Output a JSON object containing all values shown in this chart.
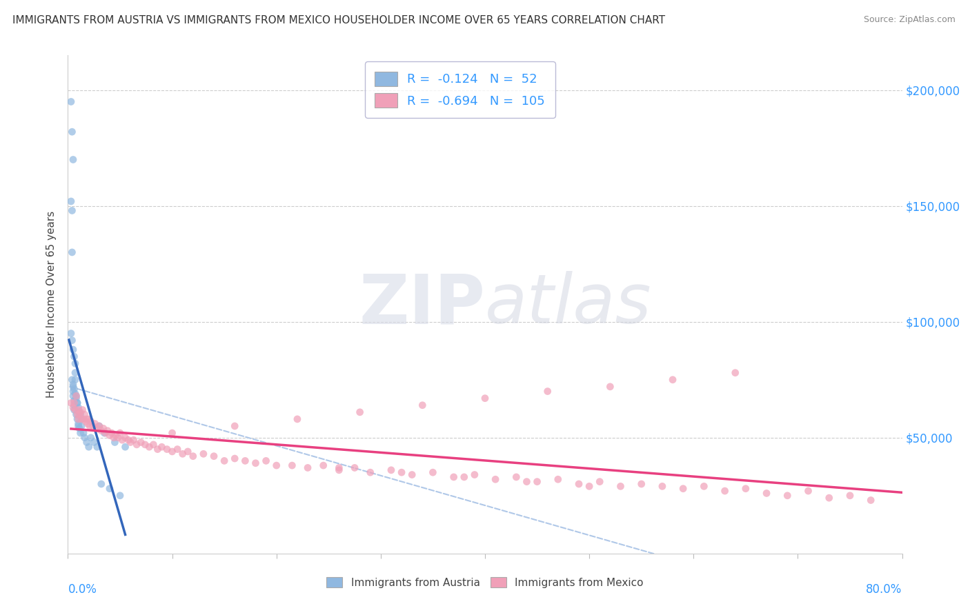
{
  "title": "IMMIGRANTS FROM AUSTRIA VS IMMIGRANTS FROM MEXICO HOUSEHOLDER INCOME OVER 65 YEARS CORRELATION CHART",
  "source": "Source: ZipAtlas.com",
  "ylabel": "Householder Income Over 65 years",
  "legend_austria_R": -0.124,
  "legend_austria_N": 52,
  "legend_mexico_R": -0.694,
  "legend_mexico_N": 105,
  "legend_austria_label": "Immigrants from Austria",
  "legend_mexico_label": "Immigrants from Mexico",
  "austria_color": "#90b8e0",
  "mexico_color": "#f0a0b8",
  "austria_line_color": "#3366bb",
  "mexico_line_color": "#e84080",
  "ref_line_color": "#b0c8e8",
  "xmin": 0.0,
  "xmax": 0.8,
  "ymin": 0,
  "ymax": 215000,
  "watermark_zip": "ZIP",
  "watermark_atlas": "atlas",
  "background_color": "#ffffff",
  "austria_x": [
    0.003,
    0.004,
    0.005,
    0.003,
    0.004,
    0.004,
    0.003,
    0.004,
    0.005,
    0.006,
    0.007,
    0.007,
    0.007,
    0.004,
    0.005,
    0.006,
    0.007,
    0.008,
    0.009,
    0.005,
    0.005,
    0.005,
    0.006,
    0.006,
    0.006,
    0.008,
    0.009,
    0.01,
    0.011,
    0.012,
    0.013,
    0.008,
    0.009,
    0.01,
    0.01,
    0.011,
    0.012,
    0.013,
    0.015,
    0.016,
    0.018,
    0.02,
    0.022,
    0.025,
    0.028,
    0.03,
    0.035,
    0.045,
    0.055,
    0.032,
    0.04,
    0.05
  ],
  "austria_y": [
    195000,
    182000,
    170000,
    152000,
    148000,
    130000,
    95000,
    92000,
    88000,
    85000,
    82000,
    78000,
    75000,
    75000,
    73000,
    71000,
    69000,
    67000,
    65000,
    72000,
    70000,
    68000,
    66000,
    64000,
    62000,
    68000,
    65000,
    63000,
    61000,
    60000,
    58000,
    60000,
    58000,
    56000,
    55000,
    54000,
    52000,
    55000,
    52000,
    50000,
    48000,
    46000,
    50000,
    48000,
    46000,
    55000,
    52000,
    48000,
    46000,
    30000,
    28000,
    25000
  ],
  "mexico_x": [
    0.003,
    0.005,
    0.006,
    0.007,
    0.008,
    0.009,
    0.01,
    0.01,
    0.011,
    0.012,
    0.013,
    0.014,
    0.015,
    0.016,
    0.017,
    0.018,
    0.019,
    0.02,
    0.021,
    0.022,
    0.024,
    0.026,
    0.028,
    0.03,
    0.032,
    0.034,
    0.036,
    0.038,
    0.04,
    0.042,
    0.044,
    0.046,
    0.048,
    0.05,
    0.052,
    0.055,
    0.058,
    0.06,
    0.063,
    0.066,
    0.07,
    0.074,
    0.078,
    0.082,
    0.086,
    0.09,
    0.095,
    0.1,
    0.105,
    0.11,
    0.115,
    0.12,
    0.13,
    0.14,
    0.15,
    0.16,
    0.17,
    0.18,
    0.19,
    0.2,
    0.215,
    0.23,
    0.245,
    0.26,
    0.275,
    0.29,
    0.31,
    0.33,
    0.35,
    0.37,
    0.39,
    0.41,
    0.43,
    0.45,
    0.47,
    0.49,
    0.51,
    0.53,
    0.55,
    0.57,
    0.59,
    0.61,
    0.63,
    0.65,
    0.67,
    0.69,
    0.71,
    0.73,
    0.75,
    0.77,
    0.64,
    0.58,
    0.52,
    0.46,
    0.4,
    0.34,
    0.28,
    0.22,
    0.16,
    0.1,
    0.5,
    0.44,
    0.38,
    0.32,
    0.26
  ],
  "mexico_y": [
    65000,
    63000,
    65000,
    62000,
    68000,
    60000,
    62000,
    58000,
    60000,
    61000,
    58000,
    62000,
    58000,
    60000,
    57000,
    58000,
    56000,
    58000,
    55000,
    57000,
    55000,
    56000,
    54000,
    55000,
    53000,
    54000,
    52000,
    53000,
    51000,
    52000,
    50000,
    51000,
    50000,
    52000,
    49000,
    50000,
    49000,
    48000,
    49000,
    47000,
    48000,
    47000,
    46000,
    47000,
    45000,
    46000,
    45000,
    44000,
    45000,
    43000,
    44000,
    42000,
    43000,
    42000,
    40000,
    41000,
    40000,
    39000,
    40000,
    38000,
    38000,
    37000,
    38000,
    36000,
    37000,
    35000,
    36000,
    34000,
    35000,
    33000,
    34000,
    32000,
    33000,
    31000,
    32000,
    30000,
    31000,
    29000,
    30000,
    29000,
    28000,
    29000,
    27000,
    28000,
    26000,
    25000,
    27000,
    24000,
    25000,
    23000,
    78000,
    75000,
    72000,
    70000,
    67000,
    64000,
    61000,
    58000,
    55000,
    52000,
    29000,
    31000,
    33000,
    35000,
    37000
  ]
}
